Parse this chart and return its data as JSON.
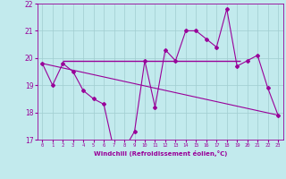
{
  "xlabel": "Windchill (Refroidissement éolien,°C)",
  "xlim": [
    -0.5,
    23.5
  ],
  "ylim": [
    17,
    22
  ],
  "yticks": [
    17,
    18,
    19,
    20,
    21,
    22
  ],
  "xticks": [
    0,
    1,
    2,
    3,
    4,
    5,
    6,
    7,
    8,
    9,
    10,
    11,
    12,
    13,
    14,
    15,
    16,
    17,
    18,
    19,
    20,
    21,
    22,
    23
  ],
  "bg_color": "#c2eaed",
  "grid_color": "#a0cdd0",
  "line_color": "#990099",
  "curve1_x": [
    0,
    1,
    2,
    3,
    4,
    5,
    6,
    7,
    8,
    9,
    10,
    11,
    12,
    13,
    14,
    15,
    16,
    17,
    18,
    19,
    20,
    21,
    22,
    23
  ],
  "curve1_y": [
    19.8,
    19.0,
    19.8,
    19.5,
    18.8,
    18.5,
    18.3,
    16.6,
    16.65,
    17.3,
    19.9,
    18.2,
    20.3,
    19.9,
    21.0,
    21.0,
    20.7,
    20.4,
    21.8,
    19.7,
    19.9,
    20.1,
    18.9,
    17.9
  ],
  "curve2_x": [
    0,
    23
  ],
  "curve2_y": [
    19.8,
    17.9
  ],
  "hline_y": 19.9,
  "hline_x_start": 2,
  "hline_x_end": 19.3
}
